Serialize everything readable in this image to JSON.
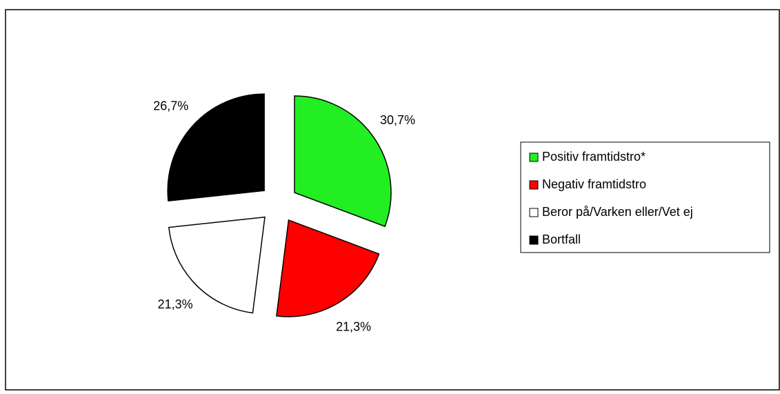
{
  "chart_data": {
    "type": "pie",
    "categories": [
      "Positiv framtidstro*",
      "Negativ framtidstro",
      "Beror på/Varken eller/Vet ej",
      "Bortfall"
    ],
    "values": [
      30.7,
      21.3,
      21.3,
      26.7
    ],
    "value_labels": [
      "30,7%",
      "21,3%",
      "21,3%",
      "26,7%"
    ],
    "colors": [
      "#22ee22",
      "#ff0000",
      "#ffffff",
      "#000000"
    ],
    "legend": "right"
  }
}
